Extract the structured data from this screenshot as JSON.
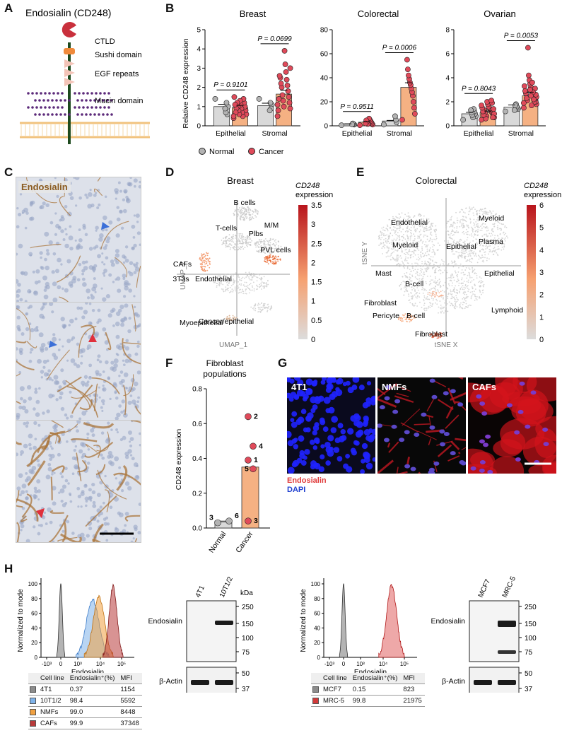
{
  "labels": {
    "A": "A",
    "B": "B",
    "C": "C",
    "D": "D",
    "E": "E",
    "F": "F",
    "G": "G",
    "H": "H"
  },
  "panelA": {
    "title": "Endosialin (CD248)",
    "domains": [
      "CTLD",
      "Sushi domain",
      "EGF repeats",
      "Mucin domain"
    ]
  },
  "panelB": {
    "ylabel": "Relative CD248 expression",
    "legend": [
      "Normal",
      "Cancer"
    ],
    "colors": {
      "normal": "#b3b3b3",
      "cancer": "#e04a5a",
      "normal_bar": "#d9d9d9",
      "cancer_bar": "#f5b183"
    },
    "charts": [
      {
        "title": "Breast",
        "ylim": [
          0,
          5
        ],
        "yticks": [
          "0",
          "1",
          "2",
          "3",
          "4",
          "5"
        ],
        "categories": [
          "Epithelial",
          "Stromal"
        ],
        "p": [
          "P = 0.9101",
          "P = 0.0699"
        ],
        "bars": {
          "normal": [
            1.0,
            1.05
          ],
          "cancer": [
            0.95,
            1.65
          ]
        },
        "points": {
          "normal": [
            [
              1.4,
              1.0,
              0.6,
              1.2,
              0.7,
              0.9
            ],
            [
              1.4,
              1.1,
              0.9,
              1.2,
              0.8
            ]
          ],
          "cancer": [
            [
              0.4,
              0.6,
              0.8,
              1.0,
              1.2,
              1.4,
              0.5,
              0.7,
              0.9,
              1.1,
              1.3,
              0.6,
              0.8,
              1.0,
              1.2,
              0.9,
              0.7,
              1.1,
              1.5,
              0.5
            ],
            [
              0.5,
              0.9,
              1.2,
              1.5,
              1.8,
              2.1,
              2.4,
              2.8,
              3.2,
              3.9,
              1.0,
              1.3,
              1.6,
              2.0,
              2.2,
              2.5,
              2.6,
              1.4,
              0.8,
              1.1,
              3.0
            ]
          ]
        }
      },
      {
        "title": "Colorectal",
        "ylim": [
          0,
          80
        ],
        "yticks": [
          "0",
          "20",
          "40",
          "60",
          "80"
        ],
        "categories": [
          "Epithelial",
          "Stromal"
        ],
        "p": [
          "P = 0.9511",
          "P = 0.0006"
        ],
        "bars": {
          "normal": [
            1.5,
            4
          ],
          "cancer": [
            3,
            32
          ]
        },
        "points": {
          "normal": [
            [
              0.5,
              1,
              1.5,
              2,
              1.2
            ],
            [
              1,
              3,
              5,
              8
            ]
          ],
          "cancer": [
            [
              0.5,
              1,
              2,
              3,
              4,
              5,
              6,
              2.5,
              1.5,
              3.5,
              4.5,
              2
            ],
            [
              5,
              10,
              15,
              20,
              25,
              28,
              31,
              34,
              36,
              39,
              42,
              47,
              55
            ]
          ]
        }
      },
      {
        "title": "Ovarian",
        "ylim": [
          0,
          8
        ],
        "yticks": [
          "0",
          "2",
          "4",
          "6",
          "8"
        ],
        "categories": [
          "Epithelial",
          "Stromal"
        ],
        "p": [
          "P = 0.8043",
          "P = 0.0053"
        ],
        "bars": {
          "normal": [
            1.0,
            1.55
          ],
          "cancer": [
            1.1,
            2.5
          ]
        },
        "points": {
          "normal": [
            [
              0.5,
              0.8,
              1.0,
              1.2,
              1.4,
              0.7,
              0.9,
              1.1,
              1.3
            ],
            [
              1.2,
              1.4,
              1.5,
              1.6,
              1.8,
              1.7,
              1.3
            ]
          ],
          "cancer": [
            [
              0.5,
              0.7,
              0.9,
              1.0,
              1.1,
              1.2,
              1.3,
              1.4,
              1.5,
              1.6,
              1.8,
              2.0,
              0.8,
              0.6,
              1.1,
              1.3,
              0.9,
              1.2,
              1.5,
              1.7,
              1.0,
              1.4,
              0.7,
              1.9,
              2.1
            ],
            [
              1.5,
              1.8,
              2.0,
              2.2,
              2.4,
              2.5,
              2.6,
              2.8,
              3.0,
              3.2,
              3.5,
              3.8,
              4.2,
              6.5,
              2.1,
              2.3,
              2.7,
              2.9,
              3.3,
              1.9,
              2.4,
              2.6,
              3.1,
              2.0,
              2.2,
              2.8,
              3.6,
              1.7,
              2.5,
              3.0
            ]
          ]
        }
      }
    ]
  },
  "panelC": {
    "label": "Endosialin"
  },
  "panelD": {
    "title": "Breast",
    "cbar_title": [
      "CD248",
      "expression"
    ],
    "cbar_ticks": [
      "3.5",
      "3",
      "2.5",
      "2",
      "1.5",
      "1",
      "0.5",
      "0"
    ],
    "xaxis": "UMAP_1",
    "yaxis": "UMAP_2",
    "clusters": [
      "B cells",
      "T-cells",
      "Plbs",
      "M/M",
      "PVL cells",
      "CAFs",
      "Endothelial",
      "3T3s",
      "Myoepithelial",
      "Cancer/epithelial"
    ]
  },
  "panelE": {
    "title": "Colorectal",
    "cbar_title": [
      "CD248",
      "expression"
    ],
    "cbar_ticks": [
      "6",
      "5",
      "4",
      "3",
      "2",
      "1",
      "0"
    ],
    "xaxis": "tSNE X",
    "yaxis": "tSNE Y",
    "clusters": [
      "Endothelial",
      "Myeloid",
      "Plasma",
      "Myeloid",
      "Epithelial",
      "Mast",
      "Epithelial",
      "B-cell",
      "Fibroblast",
      "Pericyte",
      "B-cell",
      "Lymphoid",
      "Fibroblast"
    ]
  },
  "panelF": {
    "title": [
      "Fibroblast",
      "populations"
    ],
    "ylabel": "CD248 expression",
    "yticks": [
      "0.0",
      "0.2",
      "0.4",
      "0.6",
      "0.8"
    ],
    "ylim": [
      0,
      0.8
    ],
    "categories": [
      "Normal",
      "Cancer"
    ],
    "bars": [
      0.04,
      0.35
    ],
    "points": [
      [
        {
          "v": 0.03,
          "l": "3"
        },
        {
          "v": 0.04,
          "l": "6"
        }
      ],
      [
        {
          "v": 0.64,
          "l": "2"
        },
        {
          "v": 0.47,
          "l": "4"
        },
        {
          "v": 0.39,
          "l": "1"
        },
        {
          "v": 0.34,
          "l": "5"
        },
        {
          "v": 0.04,
          "l": "3"
        }
      ]
    ]
  },
  "panelG": {
    "images": [
      "4T1",
      "NMFs",
      "CAFs"
    ],
    "legend": [
      "Endosialin",
      "DAPI"
    ]
  },
  "panelH": {
    "flow_left": {
      "ylabel": "Normalized to mode",
      "xlabel": "Endosialin",
      "yticks": [
        "0",
        "20",
        "40",
        "60",
        "80",
        "100"
      ],
      "xticks": [
        "-10³",
        "0",
        "10³",
        "10⁴",
        "10⁵"
      ]
    },
    "table_left": {
      "header": [
        "Cell line",
        "Endosialin⁺(%)",
        "MFI"
      ],
      "rows": [
        [
          "4T1",
          "0.37",
          "1154"
        ],
        [
          "10T1/2",
          "98.4",
          "5592"
        ],
        [
          "NMFs",
          "99.0",
          "8448"
        ],
        [
          "CAFs",
          "99.9",
          "37348"
        ]
      ],
      "colors": [
        "#8c8c8c",
        "#7fb3ea",
        "#f0a040",
        "#b83a3a"
      ]
    },
    "blot_left": {
      "lanes": [
        "4T1",
        "10T1/2"
      ],
      "kda": "kDa",
      "markers": [
        "250",
        "150",
        "100",
        "75"
      ],
      "actin_markers": [
        "50",
        "37"
      ],
      "protein": "Endosialin",
      "loading": "β-Actin"
    },
    "flow_right": {
      "ylabel": "Normalized to mode",
      "xlabel": "Endosialin",
      "yticks": [
        "0",
        "20",
        "40",
        "60",
        "80",
        "100"
      ],
      "xticks": [
        "-10³",
        "0",
        "10³",
        "10⁴",
        "10⁵"
      ]
    },
    "table_right": {
      "header": [
        "Cell line",
        "Endosialin⁺(%)",
        "MFI"
      ],
      "rows": [
        [
          "MCF7",
          "0.15",
          "823"
        ],
        [
          "MRC-5",
          "99.8",
          "21975"
        ]
      ],
      "colors": [
        "#8c8c8c",
        "#d23a3a"
      ]
    },
    "blot_right": {
      "lanes": [
        "MCF7",
        "MRC-5"
      ],
      "markers": [
        "250",
        "150",
        "100",
        "75"
      ],
      "actin_markers": [
        "50",
        "37"
      ],
      "protein": "Endosialin",
      "loading": "β-Actin"
    }
  }
}
